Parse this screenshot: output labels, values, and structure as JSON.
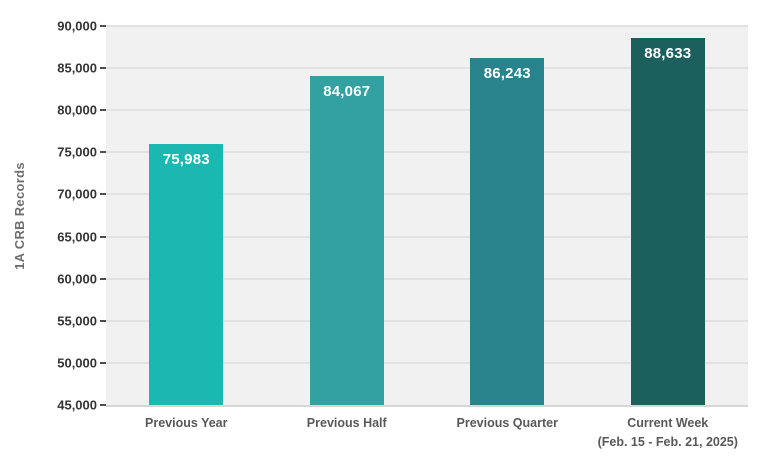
{
  "chart_data": {
    "type": "bar",
    "title": "",
    "xlabel": "",
    "ylabel": "1A CRB Records",
    "categories": [
      "Previous Year",
      "Previous Half",
      "Previous Quarter",
      "Current Week (Feb. 15 - Feb. 21, 2025)"
    ],
    "category_lines": [
      [
        "Previous Year"
      ],
      [
        "Previous Half"
      ],
      [
        "Previous Quarter"
      ],
      [
        "Current Week",
        "(Feb. 15 - Feb. 21, 2025)"
      ]
    ],
    "values": [
      75983,
      84067,
      86243,
      88633
    ],
    "value_labels": [
      "75,983",
      "84,067",
      "86,243",
      "88,633"
    ],
    "bar_colors": [
      "#1ab8b1",
      "#33a0a1",
      "#28838c",
      "#1b605d"
    ],
    "ylim": [
      45000,
      90000
    ],
    "ytick_step": 5000,
    "ytick_labels": [
      "90,000",
      "85,000",
      "80,000",
      "75,000",
      "70,000",
      "65,000",
      "60,000",
      "55,000",
      "50,000",
      "45,000"
    ],
    "grid": true,
    "legend": false,
    "colors": {
      "plot_background": "#f1f1f2",
      "gridline": "#e2e2e2",
      "axis_line": "#d6d6d6",
      "tick_mark": "#4d4d4d",
      "tick_label": "#333333",
      "category_label": "#595959",
      "value_label": "#ffffff",
      "y_axis_title": "#6e6e6e"
    }
  }
}
